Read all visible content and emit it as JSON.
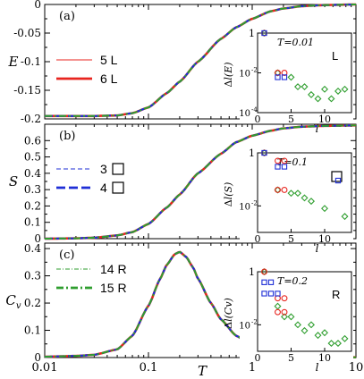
{
  "colors": {
    "red": "#e8251f",
    "blue": "#1f2fd6",
    "green": "#2f9e2f"
  },
  "main": {
    "xlabel": "T",
    "x_scale": "log",
    "xlim": [
      0.01,
      10
    ],
    "x_ticks": [
      {
        "v": 0.01,
        "label": "0.01"
      },
      {
        "v": 0.1,
        "label": "0.1"
      },
      {
        "v": 1,
        "label": "1"
      },
      {
        "v": 10,
        "label": "10"
      }
    ]
  },
  "chart_data": [
    {
      "type": "line",
      "panel": "(a)",
      "ylabel": "E",
      "ylim": [
        -0.2,
        0
      ],
      "y_ticks": [
        {
          "v": 0,
          "label": "0"
        },
        {
          "v": -0.05,
          "label": "-0.05"
        },
        {
          "v": -0.1,
          "label": "-0.1"
        },
        {
          "v": -0.15,
          "label": "-0.15"
        },
        {
          "v": -0.2,
          "label": "-0.2"
        }
      ],
      "legend": [
        {
          "label": "5 L",
          "color": "red",
          "style": "solid-thin"
        },
        {
          "label": "6 L",
          "color": "red",
          "style": "solid-thick"
        }
      ],
      "curve": {
        "kind": "sigmoid",
        "x": [
          0.01,
          0.02,
          0.03,
          0.05,
          0.07,
          0.1,
          0.15,
          0.2,
          0.3,
          0.5,
          0.7,
          1,
          1.5,
          2,
          3,
          5,
          10
        ],
        "y": [
          -0.195,
          -0.195,
          -0.195,
          -0.194,
          -0.19,
          -0.18,
          -0.155,
          -0.135,
          -0.1,
          -0.06,
          -0.04,
          -0.025,
          -0.012,
          -0.007,
          -0.003,
          -0.001,
          0
        ]
      },
      "inset": {
        "ylabel": "Δl(E)",
        "xlabel": "l",
        "annotation": "T=0.01",
        "tag": "L",
        "y_scale": "log",
        "ylim": [
          0.0001,
          1
        ],
        "y_ticks": [
          {
            "v": 1,
            "label": "1"
          },
          {
            "v": 0.01,
            "label": "10-2"
          },
          {
            "v": 0.0001,
            "label": "10-4"
          }
        ],
        "xlim": [
          0,
          14
        ],
        "x_ticks": [
          {
            "v": 0,
            "label": "0"
          },
          {
            "v": 5,
            "label": "5"
          },
          {
            "v": 10,
            "label": "10"
          }
        ],
        "red_circles": [
          {
            "x": 1,
            "y": 1
          },
          {
            "x": 3,
            "y": 0.01
          },
          {
            "x": 4,
            "y": 0.01
          }
        ],
        "blue_squares": [
          {
            "x": 1,
            "y": 1
          },
          {
            "x": 3,
            "y": 0.006
          },
          {
            "x": 4,
            "y": 0.006
          }
        ],
        "green_diamonds": [
          {
            "x": 1,
            "y": 1
          },
          {
            "x": 3,
            "y": 0.01
          },
          {
            "x": 5,
            "y": 0.006
          },
          {
            "x": 6,
            "y": 0.002
          },
          {
            "x": 7,
            "y": 0.002
          },
          {
            "x": 8,
            "y": 0.0008
          },
          {
            "x": 9,
            "y": 0.0005
          },
          {
            "x": 10,
            "y": 0.0015
          },
          {
            "x": 11,
            "y": 0.0005
          },
          {
            "x": 12,
            "y": 0.0012
          },
          {
            "x": 13,
            "y": 0.0015
          }
        ]
      }
    },
    {
      "type": "line",
      "panel": "(b)",
      "ylabel": "S",
      "ylim": [
        0,
        0.7
      ],
      "y_ticks": [
        {
          "v": 0,
          "label": "0"
        },
        {
          "v": 0.1,
          "label": "0.1"
        },
        {
          "v": 0.2,
          "label": "0.2"
        },
        {
          "v": 0.3,
          "label": "0.3"
        },
        {
          "v": 0.4,
          "label": "0.4"
        },
        {
          "v": 0.5,
          "label": "0.5"
        },
        {
          "v": 0.6,
          "label": "0.6"
        }
      ],
      "legend": [
        {
          "label": "3",
          "color": "blue",
          "style": "dashed-thin",
          "box": true
        },
        {
          "label": "4",
          "color": "blue",
          "style": "dashed-thick",
          "box": true
        }
      ],
      "curve": {
        "kind": "sigmoid",
        "x": [
          0.01,
          0.02,
          0.03,
          0.05,
          0.07,
          0.1,
          0.15,
          0.2,
          0.3,
          0.5,
          0.7,
          1,
          1.5,
          2,
          3,
          5,
          10
        ],
        "y": [
          0,
          0.002,
          0.006,
          0.02,
          0.04,
          0.09,
          0.19,
          0.27,
          0.4,
          0.52,
          0.59,
          0.63,
          0.66,
          0.675,
          0.685,
          0.69,
          0.693
        ]
      },
      "inset": {
        "ylabel": "Δl(S)",
        "xlabel": "l",
        "annotation": "T=0.1",
        "tag": "□",
        "y_scale": "log",
        "ylim": [
          0.001,
          1
        ],
        "y_ticks": [
          {
            "v": 1,
            "label": "1"
          },
          {
            "v": 0.01,
            "label": "10-2"
          }
        ],
        "xlim": [
          0,
          14
        ],
        "x_ticks": [
          {
            "v": 0,
            "label": "0"
          },
          {
            "v": 5,
            "label": "5"
          },
          {
            "v": 10,
            "label": "10"
          }
        ],
        "red_circles": [
          {
            "x": 1,
            "y": 1
          },
          {
            "x": 3,
            "y": 0.5
          },
          {
            "x": 4,
            "y": 0.5
          },
          {
            "x": 3,
            "y": 0.04
          },
          {
            "x": 4,
            "y": 0.04
          }
        ],
        "blue_squares": [
          {
            "x": 1,
            "y": 1
          },
          {
            "x": 3,
            "y": 0.3
          },
          {
            "x": 4,
            "y": 0.3
          },
          {
            "x": 12,
            "y": 0.09
          }
        ],
        "green_diamonds": [
          {
            "x": 1,
            "y": 1
          },
          {
            "x": 3,
            "y": 0.04
          },
          {
            "x": 5,
            "y": 0.03
          },
          {
            "x": 6,
            "y": 0.03
          },
          {
            "x": 7,
            "y": 0.02
          },
          {
            "x": 8,
            "y": 0.015
          },
          {
            "x": 10,
            "y": 0.008
          },
          {
            "x": 13,
            "y": 0.004
          }
        ]
      }
    },
    {
      "type": "line",
      "panel": "(c)",
      "ylabel": "Cv",
      "ylim": [
        0,
        0.42
      ],
      "y_ticks": [
        {
          "v": 0,
          "label": "0"
        },
        {
          "v": 0.1,
          "label": "0.1"
        },
        {
          "v": 0.2,
          "label": "0.2"
        },
        {
          "v": 0.3,
          "label": "0.3"
        },
        {
          "v": 0.4,
          "label": "0.4"
        }
      ],
      "legend": [
        {
          "label": "14 R",
          "color": "green",
          "style": "dashdot-thin"
        },
        {
          "label": "15 R",
          "color": "green",
          "style": "dashdot-thick"
        }
      ],
      "curve": {
        "kind": "peak",
        "x": [
          0.01,
          0.02,
          0.03,
          0.05,
          0.07,
          0.1,
          0.13,
          0.15,
          0.18,
          0.2,
          0.23,
          0.27,
          0.3,
          0.4,
          0.5,
          0.7,
          1,
          1.5,
          2,
          3,
          5,
          10
        ],
        "y": [
          0.003,
          0.006,
          0.01,
          0.03,
          0.08,
          0.19,
          0.29,
          0.34,
          0.38,
          0.388,
          0.37,
          0.33,
          0.29,
          0.2,
          0.14,
          0.08,
          0.045,
          0.02,
          0.01,
          0.005,
          0.002,
          0.001
        ]
      },
      "inset": {
        "ylabel": "Δl(Cv)",
        "xlabel": "l",
        "annotation": "T=0.2",
        "tag": "R",
        "y_scale": "log",
        "ylim": [
          0.001,
          1
        ],
        "y_ticks": [
          {
            "v": 1,
            "label": "1"
          },
          {
            "v": 0.01,
            "label": "10-2"
          }
        ],
        "xlim": [
          0,
          14
        ],
        "x_ticks": [
          {
            "v": 0,
            "label": "0"
          },
          {
            "v": 5,
            "label": "5"
          },
          {
            "v": 10,
            "label": "10"
          }
        ],
        "red_circles": [
          {
            "x": 1,
            "y": 1
          },
          {
            "x": 3,
            "y": 0.1
          },
          {
            "x": 4,
            "y": 0.1
          },
          {
            "x": 3,
            "y": 0.03
          },
          {
            "x": 4,
            "y": 0.03
          }
        ],
        "blue_squares": [
          {
            "x": 1,
            "y": 0.4
          },
          {
            "x": 2,
            "y": 0.4
          },
          {
            "x": 1,
            "y": 0.15
          },
          {
            "x": 2,
            "y": 0.15
          },
          {
            "x": 3,
            "y": 0.15
          }
        ],
        "green_diamonds": [
          {
            "x": 1,
            "y": 1
          },
          {
            "x": 3,
            "y": 0.05
          },
          {
            "x": 4,
            "y": 0.02
          },
          {
            "x": 5,
            "y": 0.02
          },
          {
            "x": 6,
            "y": 0.01
          },
          {
            "x": 7,
            "y": 0.006
          },
          {
            "x": 8,
            "y": 0.01
          },
          {
            "x": 9,
            "y": 0.004
          },
          {
            "x": 10,
            "y": 0.005
          },
          {
            "x": 11,
            "y": 0.002
          },
          {
            "x": 12,
            "y": 0.002
          },
          {
            "x": 13,
            "y": 0.003
          }
        ]
      }
    }
  ]
}
